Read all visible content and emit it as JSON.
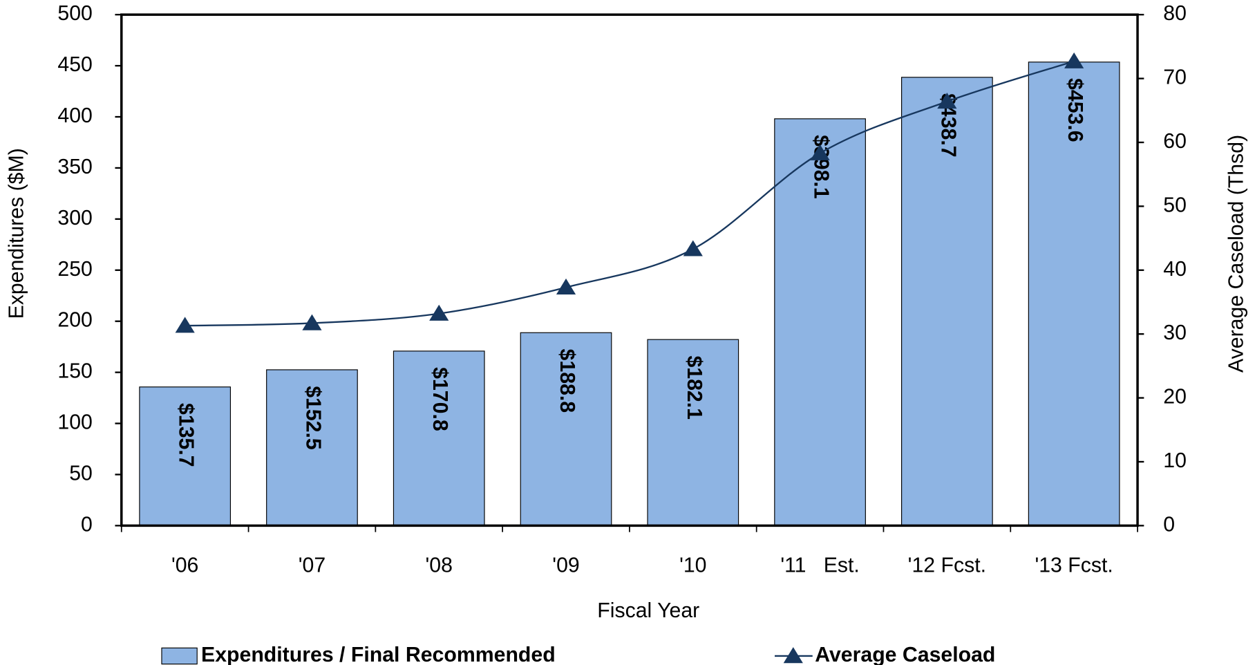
{
  "chart_data": {
    "type": "bar_line",
    "categories": [
      "'06",
      "'07",
      "'08",
      "'09",
      "'10",
      "'11   Est.",
      "'12 Fcst.",
      "'13 Fcst."
    ],
    "x_label": "Fiscal Year",
    "y_label": "Expenditures ($M)",
    "y2_label": "Average Caseload (Thsd)",
    "series": [
      {
        "name": "Expenditures / Final Recommended",
        "type": "bar",
        "color": "#8eb4e3",
        "values": [
          135.7,
          152.5,
          170.8,
          188.8,
          182.1,
          398.1,
          438.7,
          453.6
        ],
        "value_labels": [
          "$135.7",
          "$152.5",
          "$170.8",
          "$188.8",
          "$182.1",
          "$398.1",
          "$438.7",
          "$453.6"
        ]
      },
      {
        "name": "Average Caseload",
        "type": "line",
        "axis": "y2",
        "color": "#17375e",
        "values": [
          31.3,
          31.7,
          33.2,
          37.3,
          43.3,
          58.3,
          66.4,
          72.7
        ]
      }
    ],
    "ylim": [
      0,
      500
    ],
    "yticks": [
      0,
      50,
      100,
      150,
      200,
      250,
      300,
      350,
      400,
      450,
      500
    ],
    "y2lim": [
      0,
      80
    ],
    "y2ticks": [
      0,
      10,
      20,
      30,
      40,
      50,
      60,
      70,
      80
    ]
  }
}
